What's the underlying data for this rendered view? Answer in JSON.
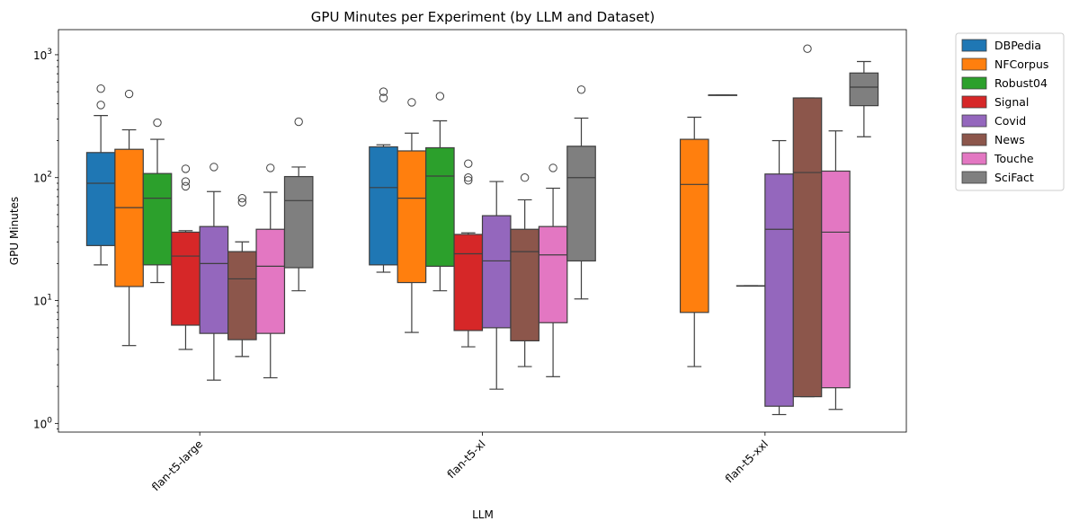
{
  "chart_data": {
    "type": "box",
    "title": "GPU Minutes per Experiment (by LLM and Dataset)",
    "xlabel": "LLM",
    "ylabel": "GPU Minutes",
    "yscale": "log",
    "ylim": [
      0.85,
      1600
    ],
    "yticks": [
      {
        "value": 1,
        "label": "10^0"
      },
      {
        "value": 10,
        "label": "10^1"
      },
      {
        "value": 100,
        "label": "10^2"
      },
      {
        "value": 1000,
        "label": "10^3"
      }
    ],
    "categories": [
      "flan-t5-large",
      "flan-t5-xl",
      "flan-t5-xxl"
    ],
    "legend_position": "outside-right",
    "series": [
      {
        "name": "DBPedia",
        "color": "#1f77b4",
        "boxes": [
          {
            "whislo": 19.5,
            "q1": 28,
            "med": 90,
            "q3": 160,
            "whishi": 320,
            "fliers": [
              390,
              530
            ]
          },
          {
            "whislo": 17,
            "q1": 19.5,
            "med": 83,
            "q3": 178,
            "whishi": 185,
            "fliers": [
              445,
              500
            ]
          },
          null
        ]
      },
      {
        "name": "NFCorpus",
        "color": "#ff7f0e",
        "boxes": [
          {
            "whislo": 4.3,
            "q1": 13,
            "med": 57,
            "q3": 170,
            "whishi": 245,
            "fliers": [
              480
            ]
          },
          {
            "whislo": 5.5,
            "q1": 14,
            "med": 68,
            "q3": 165,
            "whishi": 230,
            "fliers": [
              410
            ]
          },
          {
            "whislo": 2.9,
            "q1": 8,
            "med": 88,
            "q3": 205,
            "whishi": 310,
            "fliers": []
          }
        ]
      },
      {
        "name": "Robust04",
        "color": "#2ca02c",
        "boxes": [
          {
            "whislo": 14,
            "q1": 19.5,
            "med": 68,
            "q3": 108,
            "whishi": 205,
            "fliers": [
              280
            ]
          },
          {
            "whislo": 12,
            "q1": 19,
            "med": 103,
            "q3": 175,
            "whishi": 290,
            "fliers": [
              460
            ]
          },
          {
            "whislo": 470,
            "q1": 470,
            "med": 470,
            "q3": 470,
            "whishi": 470,
            "fliers": []
          }
        ]
      },
      {
        "name": "Signal",
        "color": "#d62728",
        "boxes": [
          {
            "whislo": 4,
            "q1": 6.3,
            "med": 23,
            "q3": 36,
            "whishi": 37,
            "fliers": [
              85,
              93,
              118
            ]
          },
          {
            "whislo": 4.2,
            "q1": 5.7,
            "med": 24,
            "q3": 34.5,
            "whishi": 35.5,
            "fliers": [
              95,
              100,
              130
            ]
          },
          {
            "whislo": 13.2,
            "q1": 13.2,
            "med": 13.2,
            "q3": 13.2,
            "whishi": 13.2,
            "fliers": []
          }
        ]
      },
      {
        "name": "Covid",
        "color": "#9467bd",
        "boxes": [
          {
            "whislo": 2.25,
            "q1": 5.4,
            "med": 20,
            "q3": 40,
            "whishi": 77,
            "fliers": [
              122
            ]
          },
          {
            "whislo": 1.9,
            "q1": 6,
            "med": 21,
            "q3": 49,
            "whishi": 93,
            "fliers": []
          },
          {
            "whislo": 1.18,
            "q1": 1.38,
            "med": 38,
            "q3": 107,
            "whishi": 200,
            "fliers": []
          }
        ]
      },
      {
        "name": "News",
        "color": "#8c564b",
        "boxes": [
          {
            "whislo": 3.5,
            "q1": 4.8,
            "med": 15,
            "q3": 25,
            "whishi": 30,
            "fliers": [
              63,
              68
            ]
          },
          {
            "whislo": 2.9,
            "q1": 4.7,
            "med": 25,
            "q3": 38,
            "whishi": 66,
            "fliers": [
              100
            ]
          },
          {
            "whislo": 1.65,
            "q1": 1.65,
            "med": 110,
            "q3": 445,
            "whishi": 445,
            "fliers": [
              1120
            ]
          }
        ]
      },
      {
        "name": "Touche",
        "color": "#e377c2",
        "boxes": [
          {
            "whislo": 2.35,
            "q1": 5.4,
            "med": 19,
            "q3": 38,
            "whishi": 76,
            "fliers": [
              120
            ]
          },
          {
            "whislo": 2.4,
            "q1": 6.6,
            "med": 23.5,
            "q3": 40,
            "whishi": 82,
            "fliers": [
              120
            ]
          },
          {
            "whislo": 1.3,
            "q1": 1.95,
            "med": 36,
            "q3": 113,
            "whishi": 240,
            "fliers": []
          }
        ]
      },
      {
        "name": "SciFact",
        "color": "#7f7f7f",
        "boxes": [
          {
            "whislo": 12,
            "q1": 18.5,
            "med": 65,
            "q3": 102,
            "whishi": 122,
            "fliers": [
              285
            ]
          },
          {
            "whislo": 10.3,
            "q1": 21,
            "med": 100,
            "q3": 180,
            "whishi": 305,
            "fliers": [
              520
            ]
          },
          {
            "whislo": 215,
            "q1": 385,
            "med": 545,
            "q3": 710,
            "whishi": 880,
            "fliers": []
          }
        ]
      }
    ]
  }
}
